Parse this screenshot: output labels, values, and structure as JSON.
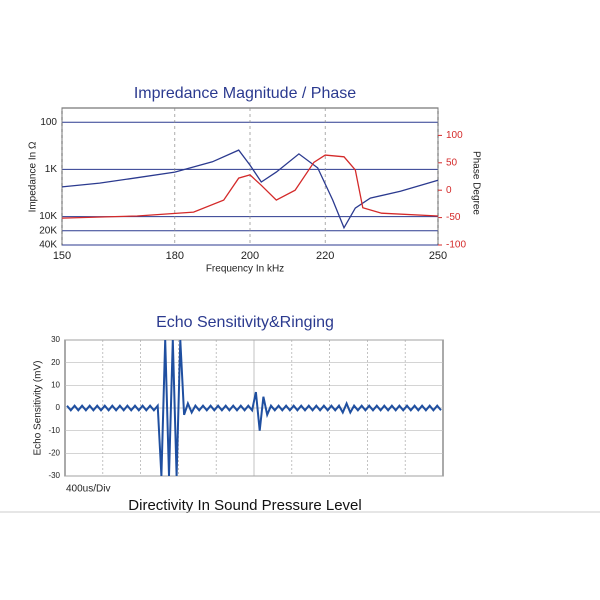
{
  "chart_data": [
    {
      "type": "line",
      "title": "Impredance Magnitude / Phase",
      "x_label": "Frequency In kHz",
      "y_label": "Impedance In Ω",
      "y2_label": "Phase Degree",
      "xlim": [
        150,
        250
      ],
      "xticks": [
        150,
        180,
        200,
        220,
        250
      ],
      "ylim": [
        50,
        40000
      ],
      "y_log": true,
      "y_inverted": true,
      "yticks": [
        100,
        {
          "value": 1000,
          "label": "1K"
        },
        {
          "value": 10000,
          "label": "10K"
        },
        {
          "value": 20000,
          "label": "20K"
        },
        {
          "value": 40000,
          "label": "40K"
        }
      ],
      "y2lim": [
        -100,
        150
      ],
      "y2ticks": [
        100,
        50,
        0,
        -50,
        -100
      ],
      "grid": true,
      "series": [
        {
          "color": "#2b3a8f",
          "x": [
            150,
            160,
            170,
            180,
            190,
            197,
            200,
            203,
            207,
            213,
            218,
            222,
            225,
            228,
            232,
            240,
            250
          ],
          "values": [
            2350,
            1950,
            1500,
            1140,
            690,
            390,
            810,
            1850,
            1140,
            470,
            930,
            4450,
            17300,
            6600,
            4050,
            2900,
            1700
          ]
        },
        {
          "color": "#d42a2a",
          "axis": "y2",
          "x": [
            150,
            170,
            185,
            193,
            197,
            200,
            203,
            207,
            212,
            217,
            220,
            225,
            228,
            230,
            235,
            250
          ],
          "values": [
            -51,
            -47,
            -40,
            -18,
            22,
            28,
            9,
            -18,
            0,
            51,
            64,
            61,
            37,
            -32,
            -42,
            -47
          ]
        }
      ]
    },
    {
      "type": "line",
      "title": "Echo Sensitivity&Ringing",
      "x_label": "400us/Div",
      "y_label": "Echo Sensitivity (mV)",
      "ylim": [
        -30,
        30
      ],
      "yticks": [
        -30,
        -20,
        -10,
        0,
        10,
        20,
        30
      ],
      "grid": true,
      "color": "#1f4fa0",
      "values": [
        1,
        -1,
        1,
        -1,
        1,
        -1,
        1,
        -1,
        1,
        -1,
        1,
        -1,
        1,
        -1,
        1,
        -1,
        1,
        -1,
        1,
        -1,
        1,
        -1,
        1,
        -1,
        1,
        -30,
        30,
        -30,
        30,
        -30,
        30,
        -3,
        2,
        -2,
        1,
        -1,
        1,
        -1,
        1,
        -1,
        1,
        -1,
        1,
        -1,
        1,
        -1,
        1,
        -1,
        1,
        -1,
        7,
        -10,
        5,
        -3,
        1,
        -1,
        1,
        -1,
        1,
        -1,
        1,
        -1,
        1,
        -1,
        1,
        -1,
        1,
        -1,
        1,
        -1,
        1,
        -1,
        1,
        -2,
        2,
        -2,
        1,
        -1,
        1,
        -1,
        1,
        -1,
        1,
        -1,
        1,
        -1,
        1,
        -1,
        1,
        -1,
        1,
        -1,
        1,
        -1,
        1,
        -1,
        1,
        -1,
        1,
        -1
      ]
    }
  ],
  "next_section_title": "Directivity In Sound Pressure Level"
}
